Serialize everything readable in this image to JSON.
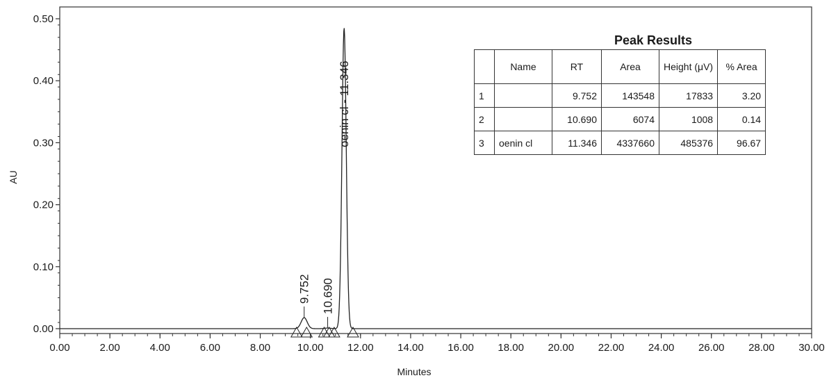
{
  "chart_data": {
    "type": "line",
    "title": "",
    "xlabel": "Minutes",
    "ylabel": "AU",
    "xlim": [
      0,
      30
    ],
    "ylim": [
      -0.01,
      0.52
    ],
    "x_ticks": [
      "0.00",
      "2.00",
      "4.00",
      "6.00",
      "8.00",
      "10.00",
      "12.00",
      "14.00",
      "16.00",
      "18.00",
      "20.00",
      "22.00",
      "24.00",
      "26.00",
      "28.00",
      "30.00"
    ],
    "y_ticks": [
      "0.00",
      "0.10",
      "0.20",
      "0.30",
      "0.40",
      "0.50"
    ],
    "baseline": 0.0,
    "peaks": [
      {
        "label": "9.752",
        "rt": 9.752,
        "height": 0.0178,
        "width": 0.12
      },
      {
        "label": "10.690",
        "rt": 10.69,
        "height": 0.001,
        "width": 0.12
      },
      {
        "label": "oenin cl - 11.346",
        "rt": 11.346,
        "height": 0.4854,
        "width": 0.085
      }
    ],
    "integration_marks": [
      9.45,
      9.85,
      10.55,
      10.75,
      10.95,
      11.7
    ]
  },
  "peak_results": {
    "title": "Peak Results",
    "headers": [
      "",
      "Name",
      "RT",
      "Area",
      "Height (μV)",
      "% Area"
    ],
    "rows": [
      {
        "idx": "1",
        "name": "",
        "rt": "9.752",
        "area": "143548",
        "height": "17833",
        "pct": "3.20"
      },
      {
        "idx": "2",
        "name": "",
        "rt": "10.690",
        "area": "6074",
        "height": "1008",
        "pct": "0.14"
      },
      {
        "idx": "3",
        "name": "oenin cl",
        "rt": "11.346",
        "area": "4337660",
        "height": "485376",
        "pct": "96.67"
      }
    ]
  }
}
